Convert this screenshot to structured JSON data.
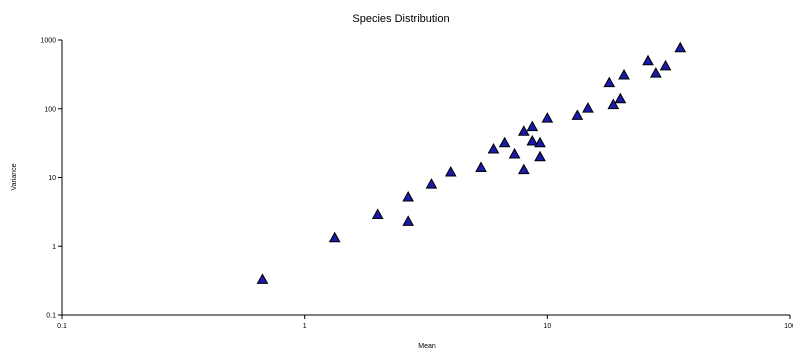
{
  "chart_data": {
    "type": "scatter",
    "title": "Species Distribution",
    "xlabel": "Mean",
    "ylabel": "Variance",
    "x_scale": "log",
    "y_scale": "log",
    "xlim": [
      0.1,
      100
    ],
    "ylim": [
      0.1,
      1000
    ],
    "x_ticks": [
      {
        "value": 0.1,
        "label": "0.1"
      },
      {
        "value": 1,
        "label": "1"
      },
      {
        "value": 10,
        "label": "10"
      },
      {
        "value": 100,
        "label": "100"
      }
    ],
    "y_ticks": [
      {
        "value": 0.1,
        "label": "0.1"
      },
      {
        "value": 1,
        "label": "1"
      },
      {
        "value": 10,
        "label": "10"
      },
      {
        "value": 100,
        "label": "100"
      },
      {
        "value": 1000,
        "label": "1000"
      }
    ],
    "grid": false,
    "marker": "triangle",
    "marker_color": "#1a1aa8",
    "marker_edge_color": "#000000",
    "series": [
      {
        "points": [
          {
            "x": 0.67,
            "y": 0.33
          },
          {
            "x": 1.33,
            "y": 1.33
          },
          {
            "x": 2.0,
            "y": 2.9
          },
          {
            "x": 2.67,
            "y": 2.3
          },
          {
            "x": 2.67,
            "y": 5.2
          },
          {
            "x": 3.33,
            "y": 8.0
          },
          {
            "x": 4.0,
            "y": 12.0
          },
          {
            "x": 5.33,
            "y": 14.0
          },
          {
            "x": 6.0,
            "y": 26.0
          },
          {
            "x": 6.67,
            "y": 32.0
          },
          {
            "x": 7.33,
            "y": 22.0
          },
          {
            "x": 8.0,
            "y": 47.0
          },
          {
            "x": 8.0,
            "y": 13.0
          },
          {
            "x": 8.67,
            "y": 55.0
          },
          {
            "x": 8.67,
            "y": 34.0
          },
          {
            "x": 9.33,
            "y": 32.0
          },
          {
            "x": 9.33,
            "y": 20.0
          },
          {
            "x": 10.0,
            "y": 73.0
          },
          {
            "x": 13.3,
            "y": 80.0
          },
          {
            "x": 14.7,
            "y": 102.0
          },
          {
            "x": 18.0,
            "y": 240.0
          },
          {
            "x": 18.7,
            "y": 115.0
          },
          {
            "x": 20.0,
            "y": 140.0
          },
          {
            "x": 20.7,
            "y": 310.0
          },
          {
            "x": 26.0,
            "y": 500.0
          },
          {
            "x": 28.0,
            "y": 330.0
          },
          {
            "x": 30.7,
            "y": 420.0
          },
          {
            "x": 35.3,
            "y": 770.0
          }
        ]
      }
    ]
  }
}
